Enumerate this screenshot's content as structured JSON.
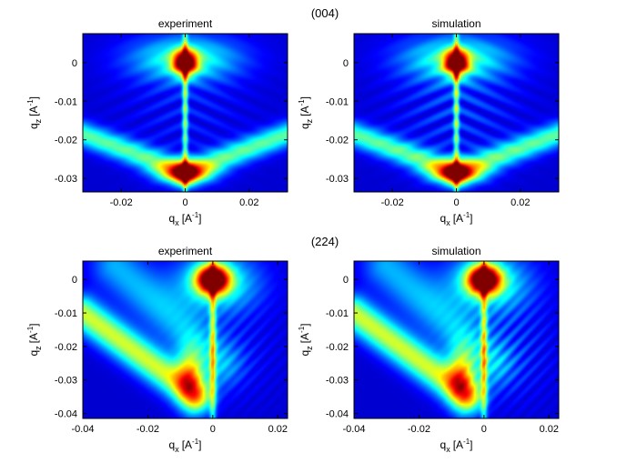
{
  "figure": {
    "section_labels": [
      "(004)",
      "(224)"
    ]
  },
  "colors": {
    "colormap": "jet",
    "background_low": "#00008f",
    "peak": "#800000"
  },
  "chart_data": [
    {
      "type": "heatmap",
      "title": "experiment",
      "group": "(004)",
      "xlabel_main": "q",
      "xlabel_sub": "x",
      "xlabel_unit": "[A",
      "xlabel_exp": "-1",
      "xlabel_close": "]",
      "ylabel_main": "q",
      "ylabel_sub": "z",
      "ylabel_unit": "[A",
      "ylabel_exp": "-1",
      "ylabel_close": "]",
      "xlim": [
        -0.032,
        0.032
      ],
      "ylim": [
        -0.0335,
        0.0075
      ],
      "xticks": [
        -0.02,
        0,
        0.02
      ],
      "xtick_labels": [
        "-0.02",
        "0",
        "0.02"
      ],
      "yticks": [
        0,
        -0.01,
        -0.02,
        -0.03
      ],
      "ytick_labels": [
        "0",
        "-0.01",
        "-0.02",
        "-0.03"
      ],
      "features": {
        "pattern": "symmetric",
        "peak": {
          "qx": 0,
          "qz": 0
        },
        "secondary_peak": {
          "qx": 0,
          "qz": -0.0285
        },
        "arms": [
          {
            "from": [
              -0.032,
              -0.0185
            ],
            "to": [
              0,
              -0.0285
            ]
          },
          {
            "from": [
              0.032,
              -0.0185
            ],
            "to": [
              0,
              -0.0285
            ]
          }
        ]
      }
    },
    {
      "type": "heatmap",
      "title": "simulation",
      "group": "(004)",
      "xlabel_main": "q",
      "xlabel_sub": "x",
      "xlabel_unit": "[A",
      "xlabel_exp": "-1",
      "xlabel_close": "]",
      "ylabel_main": "q",
      "ylabel_sub": "z",
      "ylabel_unit": "[A",
      "ylabel_exp": "-1",
      "ylabel_close": "]",
      "xlim": [
        -0.032,
        0.032
      ],
      "ylim": [
        -0.0335,
        0.0075
      ],
      "xticks": [
        -0.02,
        0,
        0.02
      ],
      "xtick_labels": [
        "-0.02",
        "0",
        "0.02"
      ],
      "yticks": [
        0,
        -0.01,
        -0.02,
        -0.03
      ],
      "ytick_labels": [
        "0",
        "-0.01",
        "-0.02",
        "-0.03"
      ],
      "features": {
        "pattern": "symmetric",
        "peak": {
          "qx": 0,
          "qz": 0
        },
        "secondary_peak": {
          "qx": 0,
          "qz": -0.0285
        },
        "arms": [
          {
            "from": [
              -0.032,
              -0.0185
            ],
            "to": [
              0,
              -0.0285
            ]
          },
          {
            "from": [
              0.032,
              -0.0185
            ],
            "to": [
              0,
              -0.0285
            ]
          }
        ]
      }
    },
    {
      "type": "heatmap",
      "title": "experiment",
      "group": "(224)",
      "xlabel_main": "q",
      "xlabel_sub": "x",
      "xlabel_unit": "[A",
      "xlabel_exp": "-1",
      "xlabel_close": "]",
      "ylabel_main": "q",
      "ylabel_sub": "z",
      "ylabel_unit": "[A",
      "ylabel_exp": "-1",
      "ylabel_close": "]",
      "xlim": [
        -0.04,
        0.023
      ],
      "ylim": [
        -0.0415,
        0.0055
      ],
      "xticks": [
        -0.04,
        -0.02,
        0,
        0.02
      ],
      "xtick_labels": [
        "-0.04",
        "-0.02",
        "0",
        "0.02"
      ],
      "yticks": [
        0,
        -0.01,
        -0.02,
        -0.03,
        -0.04
      ],
      "ytick_labels": [
        "0",
        "-0.01",
        "-0.02",
        "-0.03",
        "-0.04"
      ],
      "features": {
        "pattern": "diagonal",
        "peak": {
          "qx": 0,
          "qz": 0
        },
        "secondary_peak": {
          "qx": -0.007,
          "qz": -0.029
        },
        "arm": {
          "from": [
            -0.04,
            -0.01
          ],
          "to": [
            -0.005,
            -0.035
          ]
        }
      }
    },
    {
      "type": "heatmap",
      "title": "simulation",
      "group": "(224)",
      "xlabel_main": "q",
      "xlabel_sub": "x",
      "xlabel_unit": "[A",
      "xlabel_exp": "-1",
      "xlabel_close": "]",
      "ylabel_main": "q",
      "ylabel_sub": "z",
      "ylabel_unit": "[A",
      "ylabel_exp": "-1",
      "ylabel_close": "]",
      "xlim": [
        -0.04,
        0.023
      ],
      "ylim": [
        -0.0415,
        0.0055
      ],
      "xticks": [
        -0.04,
        -0.02,
        0,
        0.02
      ],
      "xtick_labels": [
        "-0.04",
        "-0.02",
        "0",
        "0.02"
      ],
      "yticks": [
        0,
        -0.01,
        -0.02,
        -0.03,
        -0.04
      ],
      "ytick_labels": [
        "0",
        "-0.01",
        "-0.02",
        "-0.03",
        "-0.04"
      ],
      "features": {
        "pattern": "diagonal",
        "peak": {
          "qx": 0,
          "qz": 0
        },
        "secondary_peak": {
          "qx": -0.007,
          "qz": -0.029
        },
        "arm": {
          "from": [
            -0.04,
            -0.01
          ],
          "to": [
            -0.005,
            -0.035
          ]
        }
      }
    }
  ]
}
